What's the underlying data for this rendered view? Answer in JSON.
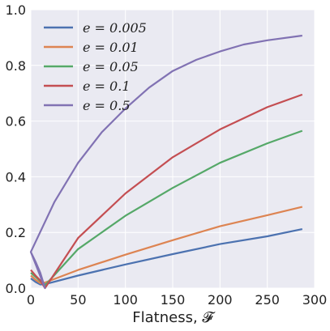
{
  "chart_data": {
    "type": "line",
    "xlabel": "Flatness, 𝓕",
    "xlim": [
      0,
      300
    ],
    "ylim": [
      0.0,
      1.0
    ],
    "xticks": [
      0,
      50,
      100,
      150,
      200,
      250,
      300
    ],
    "yticks": [
      0.0,
      0.2,
      0.4,
      0.6,
      0.8,
      1.0
    ],
    "grid": true,
    "legend_position": "top-left",
    "series": [
      {
        "name": "e = 0.005",
        "color": "#4c72b0",
        "x": [
          0,
          5,
          10,
          15,
          50,
          100,
          150,
          200,
          250,
          287
        ],
        "y": [
          0.035,
          0.022,
          0.013,
          0.014,
          0.045,
          0.085,
          0.122,
          0.158,
          0.186,
          0.212
        ]
      },
      {
        "name": "e = 0.01",
        "color": "#dd8452",
        "x": [
          0,
          5,
          10,
          15,
          50,
          100,
          150,
          200,
          250,
          287
        ],
        "y": [
          0.045,
          0.03,
          0.018,
          0.02,
          0.065,
          0.12,
          0.172,
          0.222,
          0.262,
          0.292
        ]
      },
      {
        "name": "e = 0.05",
        "color": "#55a868",
        "x": [
          0,
          5,
          10,
          15,
          50,
          100,
          150,
          200,
          250,
          287
        ],
        "y": [
          0.055,
          0.04,
          0.025,
          0.01,
          0.14,
          0.26,
          0.36,
          0.45,
          0.52,
          0.565
        ]
      },
      {
        "name": "e = 0.1",
        "color": "#c44e52",
        "x": [
          0,
          5,
          10,
          15,
          50,
          100,
          150,
          200,
          250,
          287
        ],
        "y": [
          0.065,
          0.045,
          0.028,
          0.0,
          0.18,
          0.34,
          0.47,
          0.57,
          0.65,
          0.695
        ]
      },
      {
        "name": "e = 0.5",
        "color": "#8172b3",
        "x": [
          0,
          5,
          10,
          15,
          0,
          25,
          50,
          75,
          100,
          125,
          150,
          175,
          200,
          225,
          250,
          287
        ],
        "y": [
          0.13,
          0.095,
          0.055,
          0.0,
          0.13,
          0.31,
          0.45,
          0.56,
          0.645,
          0.72,
          0.78,
          0.82,
          0.85,
          0.875,
          0.89,
          0.907
        ]
      }
    ]
  }
}
